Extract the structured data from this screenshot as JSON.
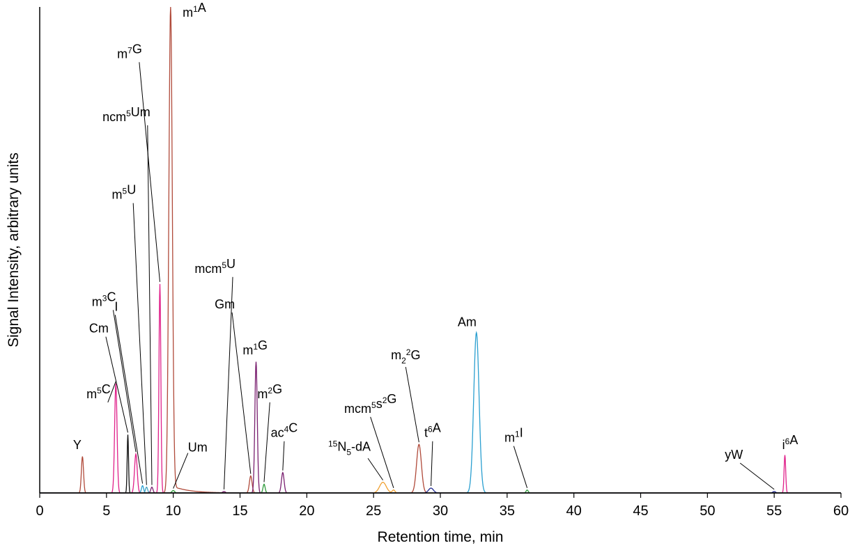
{
  "chart_data": {
    "type": "line",
    "xlabel": "Retention time, min",
    "ylabel": "Signal Intensity, arbitrary units",
    "xlim": [
      0,
      60
    ],
    "ylim": [
      0,
      100
    ],
    "x_ticks": [
      "0",
      "5",
      "10",
      "15",
      "20",
      "25",
      "30",
      "35",
      "40",
      "45",
      "50",
      "55",
      "60"
    ],
    "grid": false,
    "colors": {
      "brown": "#b04a3a",
      "magenta": "#e0208a",
      "blue": "#2a9fd0",
      "purple": "#7a2070",
      "green": "#2e9a3a",
      "orange": "#f0a030",
      "navy": "#202a90",
      "black": "#111111",
      "teal": "#40a0c0"
    },
    "peaks": [
      {
        "label": "Y",
        "rt": 3.2,
        "height": 7.5,
        "width": 0.08,
        "color": "brown",
        "label_rt": 2.5,
        "label_h": 9.0
      },
      {
        "label": "m5C",
        "rt": 5.7,
        "height": 22.5,
        "width": 0.09,
        "color": "magenta",
        "label_rt": 3.5,
        "label_h": 19.5
      },
      {
        "label": "Cm",
        "rt": 6.6,
        "height": 12.0,
        "width": 0.05,
        "color": "black",
        "label_rt": 3.7,
        "label_h": 33.0
      },
      {
        "label": "m3C",
        "rt": 7.2,
        "height": 8.0,
        "width": 0.1,
        "color": "magenta",
        "label_rt": 3.9,
        "label_h": 38.5
      },
      {
        "label": "I",
        "rt": 7.7,
        "height": 1.5,
        "width": 0.08,
        "color": "blue",
        "label_rt": 5.6,
        "label_h": 37.5
      },
      {
        "label": "m5U",
        "rt": 8.0,
        "height": 1.2,
        "width": 0.08,
        "color": "teal",
        "label_rt": 5.4,
        "label_h": 60.5
      },
      {
        "label": "ncm5Um",
        "rt": 8.4,
        "height": 1.2,
        "width": 0.08,
        "color": "purple",
        "label_rt": 4.7,
        "label_h": 76.5
      },
      {
        "label": "m7G",
        "rt": 9.0,
        "height": 43.0,
        "width": 0.07,
        "color": "magenta",
        "label_rt": 5.8,
        "label_h": 89.5
      },
      {
        "label": "m1A",
        "rt": 9.8,
        "height": 100.0,
        "width": 0.13,
        "color": "brown",
        "label_rt": 10.7,
        "label_h": 98.0
      },
      {
        "label": "Um",
        "rt": 10.0,
        "height": 0.5,
        "width": 0.1,
        "color": "green",
        "label_rt": 11.1,
        "label_h": 8.5
      },
      {
        "label": "mcm5U",
        "rt": 13.8,
        "height": 0.3,
        "width": 0.1,
        "color": "purple",
        "label_rt": 11.6,
        "label_h": 45.3
      },
      {
        "label": "Gm",
        "rt": 15.8,
        "height": 3.5,
        "width": 0.1,
        "color": "brown",
        "label_rt": 13.1,
        "label_h": 38.0
      },
      {
        "label": "m1G",
        "rt": 16.2,
        "height": 27.0,
        "width": 0.09,
        "color": "purple",
        "label_rt": 15.2,
        "label_h": 28.5
      },
      {
        "label": "m2G",
        "rt": 16.8,
        "height": 1.8,
        "width": 0.08,
        "color": "green",
        "label_rt": 16.3,
        "label_h": 19.5
      },
      {
        "label": "ac4C",
        "rt": 18.2,
        "height": 4.2,
        "width": 0.1,
        "color": "purple",
        "label_rt": 17.3,
        "label_h": 11.5
      },
      {
        "label": "15N5-dA",
        "rt": 25.7,
        "height": 2.2,
        "width": 0.25,
        "color": "orange",
        "label_rt": 21.6,
        "label_h": 8.7
      },
      {
        "label": "mcm5s2G",
        "rt": 26.5,
        "height": 0.6,
        "width": 0.1,
        "color": "orange",
        "label_rt": 22.8,
        "label_h": 16.5
      },
      {
        "label": "m22G",
        "rt": 28.4,
        "height": 10.0,
        "width": 0.18,
        "color": "brown",
        "label_rt": 26.3,
        "label_h": 27.5
      },
      {
        "label": "t6A",
        "rt": 29.3,
        "height": 1.0,
        "width": 0.18,
        "color": "navy",
        "label_rt": 28.8,
        "label_h": 11.5
      },
      {
        "label": "Am",
        "rt": 32.7,
        "height": 33.0,
        "width": 0.2,
        "color": "blue",
        "label_rt": 31.3,
        "label_h": 34.3
      },
      {
        "label": "m1I",
        "rt": 36.5,
        "height": 0.6,
        "width": 0.08,
        "color": "green",
        "label_rt": 34.8,
        "label_h": 10.5
      },
      {
        "label": "yW",
        "rt": 55.0,
        "height": 0.3,
        "width": 0.1,
        "color": "navy",
        "label_rt": 51.3,
        "label_h": 7.0
      },
      {
        "label": "i6A",
        "rt": 55.8,
        "height": 7.8,
        "width": 0.06,
        "color": "magenta",
        "label_rt": 55.6,
        "label_h": 9.0
      }
    ]
  }
}
